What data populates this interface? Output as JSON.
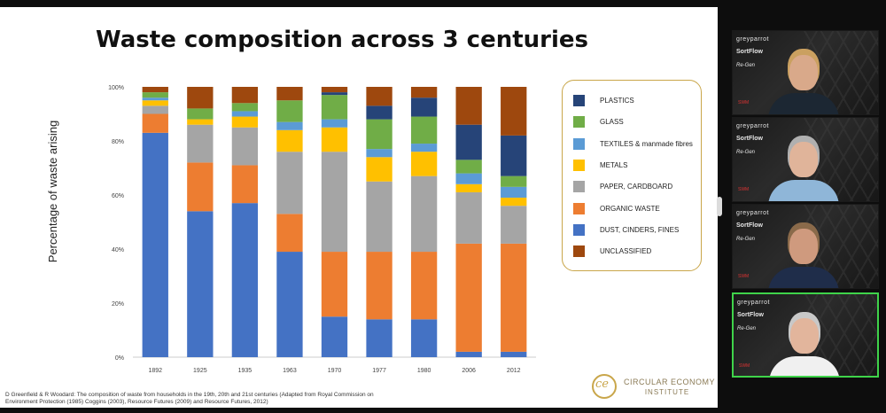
{
  "slide": {
    "title": "Waste composition across 3 centuries",
    "citation": "D Greenfield & R Woodard: The composition of waste from households in the 19th, 20th and 21st centuries (Adapted from Royal Commission on Environment Protection (1985) Coggins (2003), Resource Futures (2009) and Resource Futures, 2012)",
    "logo": {
      "mark": "ce",
      "line1": "CIRCULAR ECONOMY",
      "line2": "INSTITUTE"
    }
  },
  "chart_data": {
    "type": "bar",
    "stacked": true,
    "ylabel": "Percentage of waste arising",
    "xlabel": "",
    "ylim": [
      0,
      100
    ],
    "yticks": [
      "0%",
      "20%",
      "40%",
      "60%",
      "80%",
      "100%"
    ],
    "categories": [
      "1892",
      "1925",
      "1935",
      "1963",
      "1970",
      "1977",
      "1980",
      "2006",
      "2012"
    ],
    "series": [
      {
        "name": "DUST, CINDERS, FINES",
        "color": "#4472c4",
        "values": [
          83,
          54,
          57,
          39,
          15,
          14,
          14,
          2,
          2
        ]
      },
      {
        "name": "ORGANIC WASTE",
        "color": "#ed7d31",
        "values": [
          7,
          18,
          14,
          14,
          24,
          25,
          25,
          40,
          40
        ]
      },
      {
        "name": "PAPER, CARDBOARD",
        "color": "#a5a5a5",
        "values": [
          3,
          14,
          14,
          23,
          37,
          26,
          28,
          19,
          14
        ]
      },
      {
        "name": "METALS",
        "color": "#ffc000",
        "values": [
          2,
          2,
          4,
          8,
          9,
          9,
          9,
          3,
          3
        ]
      },
      {
        "name": "TEXTILES & manmade fibres",
        "color": "#5b9bd5",
        "values": [
          1,
          0,
          2,
          3,
          3,
          3,
          3,
          4,
          4
        ]
      },
      {
        "name": "GLASS",
        "color": "#70ad47",
        "values": [
          2,
          4,
          3,
          8,
          9,
          11,
          10,
          5,
          4
        ]
      },
      {
        "name": "PLASTICS",
        "color": "#264478",
        "values": [
          0,
          0,
          0,
          0,
          1,
          5,
          7,
          13,
          15
        ]
      },
      {
        "name": "UNCLASSIFIED",
        "color": "#9e480e",
        "values": [
          2,
          8,
          6,
          5,
          2,
          7,
          4,
          14,
          18
        ]
      }
    ],
    "legend_order": [
      "PLASTICS",
      "GLASS",
      "TEXTILES & manmade fibres",
      "METALS",
      "PAPER, CARDBOARD",
      "ORGANIC WASTE",
      "DUST, CINDERS, FINES",
      "UNCLASSIFIED"
    ],
    "legend_position": "right",
    "grid": false
  },
  "participants": [
    {
      "brands": [
        "greyparrot",
        "SortFlow",
        "Re-Gen",
        "SWM"
      ],
      "skin": "#d9a98a",
      "hair": "#caa060",
      "shirt": "#1c2733",
      "active": false
    },
    {
      "brands": [
        "greyparrot",
        "SortFlow",
        "Re-Gen",
        "SWM"
      ],
      "skin": "#e0b49a",
      "hair": "#b0b0b0",
      "shirt": "#8fb6d8",
      "active": false
    },
    {
      "brands": [
        "greyparrot",
        "SortFlow",
        "Re-Gen",
        "SWM"
      ],
      "skin": "#cf9a7e",
      "hair": "#8a6a4a",
      "shirt": "#1f2d4a",
      "active": false
    },
    {
      "brands": [
        "greyparrot",
        "SortFlow",
        "Re-Gen",
        "SWM"
      ],
      "skin": "#e2b59c",
      "hair": "#c8c8c8",
      "shirt": "#f0f0f0",
      "active": true
    }
  ]
}
